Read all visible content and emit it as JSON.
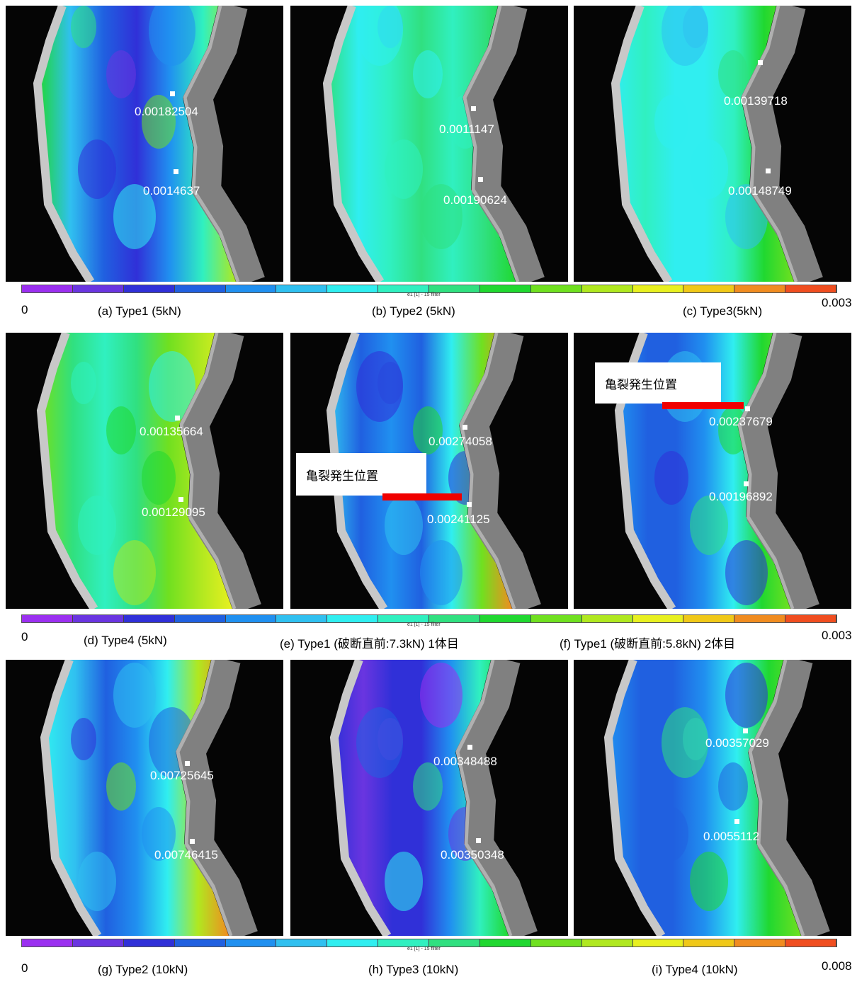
{
  "rows": [
    {
      "panels": [
        {
          "caption": "(a) Type1 (5kN)",
          "points": [
            "0.00182504",
            "0.0014637"
          ]
        },
        {
          "caption": "(b) Type2 (5kN)",
          "points": [
            "0.0011147",
            "0.00190624"
          ]
        },
        {
          "caption": "(c) Type3(5kN)",
          "points": [
            "0.00139718",
            "0.00148749"
          ]
        }
      ],
      "colorbar": {
        "title": "e1 [1] - 15 filter",
        "min": "0",
        "max": "0.003"
      }
    },
    {
      "panels": [
        {
          "caption": "(d) Type4 (5kN)",
          "points": [
            "0.00135664",
            "0.00129095"
          ]
        },
        {
          "caption": "(e) Type1 (破断直前:7.3kN) 1体目",
          "points": [
            "0.00274058",
            "0.00241125"
          ],
          "annotation": "亀裂発生位置"
        },
        {
          "caption": "(f) Type1 (破断直前:5.8kN) 2体目",
          "points": [
            "0.00237679",
            "0.00196892"
          ],
          "annotation": "亀裂発生位置"
        }
      ],
      "colorbar": {
        "title": "e1 [1] - 15 filter",
        "min": "0",
        "max": "0.003"
      }
    },
    {
      "panels": [
        {
          "caption": "(g) Type2 (10kN)",
          "points": [
            "0.00725645",
            "0.00746415"
          ]
        },
        {
          "caption": "(h) Type3 (10kN)",
          "points": [
            "0.00348488",
            "0.00350348"
          ]
        },
        {
          "caption": "(i) Type4 (10kN)",
          "points": [
            "0.00357029",
            "0.0055112"
          ]
        }
      ],
      "colorbar": {
        "title": "e1 [1] - 15 filter",
        "min": "0",
        "max": "0.008"
      }
    }
  ]
}
